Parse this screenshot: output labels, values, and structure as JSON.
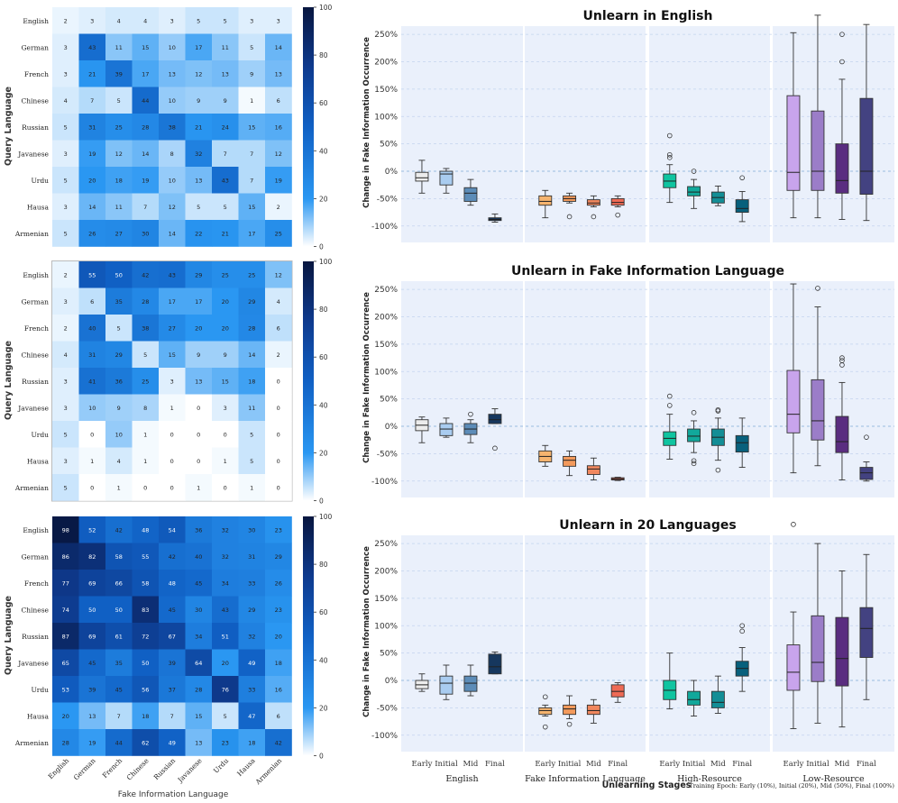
{
  "colorbar": {
    "ticks": [
      0,
      20,
      40,
      60,
      80,
      100
    ],
    "min": 0,
    "max": 100
  },
  "labels": {
    "query_language": "Query Language",
    "fake_info_language": "Fake Information Language",
    "y_axis": "Change in Fake Information Occurrence",
    "x_axis": "Unlearning Stages",
    "footnote": "Training Epoch: Early (10%), Initial (20%), Mid (50%), Final (100%)"
  },
  "chart_data": [
    {
      "type": "heatmap",
      "name": "heatmap-english",
      "rows": [
        "English",
        "German",
        "French",
        "Chinese",
        "Russian",
        "Javanese",
        "Urdu",
        "Hausa",
        "Armenian"
      ],
      "cols": [
        "English",
        "German",
        "French",
        "Chinese",
        "Russian",
        "Javanese",
        "Urdu",
        "Hausa",
        "Armenian"
      ],
      "values": [
        [
          2,
          3,
          4,
          4,
          3,
          5,
          5,
          3,
          3
        ],
        [
          3,
          43,
          11,
          15,
          10,
          17,
          11,
          5,
          14
        ],
        [
          3,
          21,
          39,
          17,
          13,
          12,
          13,
          9,
          13
        ],
        [
          4,
          7,
          5,
          44,
          10,
          9,
          9,
          1,
          6
        ],
        [
          5,
          31,
          25,
          28,
          38,
          21,
          24,
          15,
          16
        ],
        [
          3,
          19,
          12,
          14,
          8,
          32,
          7,
          7,
          12
        ],
        [
          5,
          20,
          18,
          19,
          10,
          13,
          43,
          7,
          19
        ],
        [
          3,
          14,
          11,
          7,
          12,
          5,
          5,
          15,
          2
        ],
        [
          5,
          26,
          27,
          30,
          14,
          22,
          21,
          17,
          25
        ]
      ],
      "ylabel": "Query Language"
    },
    {
      "type": "heatmap",
      "name": "heatmap-fake-language",
      "rows": [
        "English",
        "German",
        "French",
        "Chinese",
        "Russian",
        "Javanese",
        "Urdu",
        "Hausa",
        "Armenian"
      ],
      "cols": [
        "English",
        "German",
        "French",
        "Chinese",
        "Russian",
        "Javanese",
        "Urdu",
        "Hausa",
        "Armenian"
      ],
      "values": [
        [
          2,
          55,
          50,
          42,
          43,
          29,
          25,
          25,
          12
        ],
        [
          3,
          6,
          35,
          28,
          17,
          17,
          20,
          29,
          4
        ],
        [
          2,
          40,
          5,
          38,
          27,
          20,
          20,
          28,
          6
        ],
        [
          4,
          31,
          29,
          5,
          15,
          9,
          9,
          14,
          2
        ],
        [
          3,
          41,
          36,
          25,
          3,
          13,
          15,
          18,
          0
        ],
        [
          3,
          10,
          9,
          8,
          1,
          0,
          3,
          11,
          0
        ],
        [
          5,
          0,
          10,
          1,
          0,
          0,
          0,
          5,
          0
        ],
        [
          3,
          1,
          4,
          1,
          0,
          0,
          1,
          5,
          0
        ],
        [
          5,
          0,
          1,
          0,
          0,
          1,
          0,
          1,
          0
        ]
      ],
      "ylabel": "Query Language"
    },
    {
      "type": "heatmap",
      "name": "heatmap-20-languages",
      "rows": [
        "English",
        "German",
        "French",
        "Chinese",
        "Russian",
        "Javanese",
        "Urdu",
        "Hausa",
        "Armenian"
      ],
      "cols": [
        "English",
        "German",
        "French",
        "Chinese",
        "Russian",
        "Javanese",
        "Urdu",
        "Hausa",
        "Armenian"
      ],
      "values": [
        [
          98,
          52,
          42,
          48,
          54,
          36,
          32,
          30,
          23
        ],
        [
          86,
          82,
          58,
          55,
          42,
          40,
          32,
          31,
          29
        ],
        [
          77,
          69,
          66,
          58,
          48,
          45,
          34,
          33,
          26
        ],
        [
          74,
          50,
          50,
          83,
          45,
          30,
          43,
          29,
          23
        ],
        [
          87,
          69,
          61,
          72,
          67,
          34,
          51,
          32,
          20
        ],
        [
          65,
          45,
          35,
          50,
          39,
          64,
          20,
          49,
          18
        ],
        [
          53,
          39,
          45,
          56,
          37,
          28,
          76,
          33,
          16
        ],
        [
          20,
          13,
          7,
          18,
          7,
          15,
          5,
          47,
          6
        ],
        [
          28,
          19,
          44,
          62,
          49,
          13,
          23,
          18,
          42
        ]
      ],
      "ylabel": "Query Language",
      "xlabel": "Fake Information Language"
    },
    {
      "type": "box",
      "name": "box-english",
      "title": "Unlearn in English",
      "ylabel": "Change in Fake Information Occurrence",
      "ylim": [
        -130,
        265
      ],
      "yticks": [
        -100,
        -50,
        0,
        50,
        100,
        150,
        200,
        250
      ],
      "ytick_labels": [
        "-100%",
        "-50%",
        "0%",
        "50%",
        "100%",
        "150%",
        "200%",
        "250%"
      ],
      "groups": [
        "English",
        "Fake Information Language",
        "High-Resource",
        "Low-Resource"
      ],
      "stages": [
        "Early",
        "Initial",
        "Mid",
        "Final"
      ],
      "boxes": [
        [
          {
            "q1": -18,
            "med": -12,
            "q3": -2,
            "lo": -40,
            "hi": 20,
            "fl": []
          },
          {
            "q1": -25,
            "med": -5,
            "q3": 0,
            "lo": -40,
            "hi": 5,
            "fl": []
          },
          {
            "q1": -55,
            "med": -40,
            "q3": -30,
            "lo": -62,
            "hi": -15,
            "fl": []
          },
          {
            "q1": -90,
            "med": -88,
            "q3": -85,
            "lo": -93,
            "hi": -78,
            "fl": []
          }
        ],
        [
          {
            "q1": -62,
            "med": -55,
            "q3": -45,
            "lo": -85,
            "hi": -35,
            "fl": []
          },
          {
            "q1": -55,
            "med": -50,
            "q3": -45,
            "lo": -58,
            "hi": -40,
            "fl": [
              -83
            ]
          },
          {
            "q1": -62,
            "med": -58,
            "q3": -52,
            "lo": -65,
            "hi": -45,
            "fl": [
              -83
            ]
          },
          {
            "q1": -62,
            "med": -57,
            "q3": -50,
            "lo": -65,
            "hi": -45,
            "fl": [
              -80
            ]
          }
        ],
        [
          {
            "q1": -30,
            "med": -18,
            "q3": -5,
            "lo": -57,
            "hi": 12,
            "fl": [
              65,
              30,
              25
            ]
          },
          {
            "q1": -45,
            "med": -38,
            "q3": -28,
            "lo": -68,
            "hi": -15,
            "fl": [
              0
            ]
          },
          {
            "q1": -58,
            "med": -48,
            "q3": -38,
            "lo": -63,
            "hi": -27,
            "fl": []
          },
          {
            "q1": -75,
            "med": -68,
            "q3": -52,
            "lo": -92,
            "hi": -37,
            "fl": [
              -12
            ]
          }
        ],
        [
          {
            "q1": -35,
            "med": -2,
            "q3": 138,
            "lo": -85,
            "hi": 253,
            "fl": []
          },
          {
            "q1": -35,
            "med": 0,
            "q3": 110,
            "lo": -85,
            "hi": 285,
            "fl": []
          },
          {
            "q1": -40,
            "med": -17,
            "q3": 50,
            "lo": -88,
            "hi": 168,
            "fl": [
              250,
              200
            ]
          },
          {
            "q1": -42,
            "med": 0,
            "q3": 133,
            "lo": -90,
            "hi": 268,
            "fl": []
          }
        ]
      ]
    },
    {
      "type": "box",
      "name": "box-fake-language",
      "title": "Unlearn in Fake Information Language",
      "ylabel": "Change in Fake Information Occurrence",
      "ylim": [
        -130,
        265
      ],
      "yticks": [
        -100,
        -50,
        0,
        50,
        100,
        150,
        200,
        250
      ],
      "ytick_labels": [
        "-100%",
        "-50%",
        "0%",
        "50%",
        "100%",
        "150%",
        "200%",
        "250%"
      ],
      "groups": [
        "English",
        "Fake Information Language",
        "High-Resource",
        "Low-Resource"
      ],
      "stages": [
        "Early",
        "Initial",
        "Mid",
        "Final"
      ],
      "boxes": [
        [
          {
            "q1": -8,
            "med": 2,
            "q3": 12,
            "lo": -30,
            "hi": 17,
            "fl": []
          },
          {
            "q1": -17,
            "med": -5,
            "q3": 5,
            "lo": -20,
            "hi": 15,
            "fl": []
          },
          {
            "q1": -15,
            "med": -5,
            "q3": 5,
            "lo": -30,
            "hi": 12,
            "fl": [
              22
            ]
          },
          {
            "q1": 5,
            "med": 12,
            "q3": 22,
            "lo": 5,
            "hi": 32,
            "fl": [
              -40
            ]
          }
        ],
        [
          {
            "q1": -65,
            "med": -55,
            "q3": -45,
            "lo": -73,
            "hi": -35,
            "fl": []
          },
          {
            "q1": -73,
            "med": -62,
            "q3": -55,
            "lo": -90,
            "hi": -45,
            "fl": []
          },
          {
            "q1": -88,
            "med": -78,
            "q3": -72,
            "lo": -98,
            "hi": -58,
            "fl": []
          },
          {
            "q1": -98,
            "med": -96,
            "q3": -94,
            "lo": -99,
            "hi": -93,
            "fl": []
          }
        ],
        [
          {
            "q1": -35,
            "med": -22,
            "q3": -10,
            "lo": -60,
            "hi": 22,
            "fl": [
              55,
              38
            ]
          },
          {
            "q1": -28,
            "med": -18,
            "q3": -5,
            "lo": -48,
            "hi": 10,
            "fl": [
              25,
              -63,
              -68
            ]
          },
          {
            "q1": -35,
            "med": -20,
            "q3": -5,
            "lo": -62,
            "hi": 15,
            "fl": [
              30,
              28,
              -80
            ]
          },
          {
            "q1": -47,
            "med": -30,
            "q3": -17,
            "lo": -75,
            "hi": 15,
            "fl": []
          }
        ],
        [
          {
            "q1": -12,
            "med": 22,
            "q3": 102,
            "lo": -85,
            "hi": 260,
            "fl": []
          },
          {
            "q1": -25,
            "med": 10,
            "q3": 85,
            "lo": -72,
            "hi": 218,
            "fl": [
              252
            ]
          },
          {
            "q1": -48,
            "med": -28,
            "q3": 18,
            "lo": -98,
            "hi": 80,
            "fl": [
              125,
              120,
              112
            ]
          },
          {
            "q1": -97,
            "med": -85,
            "q3": -75,
            "lo": -100,
            "hi": -65,
            "fl": [
              -20
            ]
          }
        ]
      ]
    },
    {
      "type": "box",
      "name": "box-20-languages",
      "title": "Unlearn in 20 Languages",
      "ylabel": "Change in Fake Information Occurrence",
      "xlabel": "Unlearning Stages",
      "ylim": [
        -130,
        265
      ],
      "yticks": [
        -100,
        -50,
        0,
        50,
        100,
        150,
        200,
        250
      ],
      "ytick_labels": [
        "-100%",
        "-50%",
        "0%",
        "50%",
        "100%",
        "150%",
        "200%",
        "250%"
      ],
      "groups": [
        "English",
        "Fake Information Language",
        "High-Resource",
        "Low-Resource"
      ],
      "stages": [
        "Early",
        "Initial",
        "Mid",
        "Final"
      ],
      "boxes": [
        [
          {
            "q1": -15,
            "med": -8,
            "q3": 0,
            "lo": -20,
            "hi": 12,
            "fl": []
          },
          {
            "q1": -25,
            "med": -5,
            "q3": 8,
            "lo": -35,
            "hi": 28,
            "fl": []
          },
          {
            "q1": -20,
            "med": -5,
            "q3": 8,
            "lo": -28,
            "hi": 28,
            "fl": []
          },
          {
            "q1": 12,
            "med": 25,
            "q3": 48,
            "lo": 12,
            "hi": 52,
            "fl": []
          }
        ],
        [
          {
            "q1": -62,
            "med": -55,
            "q3": -50,
            "lo": -65,
            "hi": -45,
            "fl": [
              -30,
              -85
            ]
          },
          {
            "q1": -62,
            "med": -52,
            "q3": -45,
            "lo": -70,
            "hi": -28,
            "fl": [
              -80
            ]
          },
          {
            "q1": -62,
            "med": -55,
            "q3": -45,
            "lo": -78,
            "hi": -35,
            "fl": []
          },
          {
            "q1": -30,
            "med": -20,
            "q3": -8,
            "lo": -40,
            "hi": -4,
            "fl": []
          }
        ],
        [
          {
            "q1": -35,
            "med": -18,
            "q3": 0,
            "lo": -52,
            "hi": 50,
            "fl": []
          },
          {
            "q1": -45,
            "med": -35,
            "q3": -20,
            "lo": -65,
            "hi": 0,
            "fl": []
          },
          {
            "q1": -50,
            "med": -40,
            "q3": -20,
            "lo": -60,
            "hi": 8,
            "fl": []
          },
          {
            "q1": 8,
            "med": 22,
            "q3": 35,
            "lo": -20,
            "hi": 60,
            "fl": [
              100,
              90
            ]
          }
        ],
        [
          {
            "q1": -18,
            "med": 15,
            "q3": 65,
            "lo": -88,
            "hi": 125,
            "fl": [
              285
            ]
          },
          {
            "q1": -2,
            "med": 33,
            "q3": 118,
            "lo": -78,
            "hi": 250,
            "fl": []
          },
          {
            "q1": -10,
            "med": 40,
            "q3": 115,
            "lo": -85,
            "hi": 200,
            "fl": []
          },
          {
            "q1": 42,
            "med": 95,
            "q3": 133,
            "lo": -35,
            "hi": 230,
            "fl": []
          }
        ]
      ]
    }
  ],
  "box_colors": [
    [
      "#ececec",
      "#a9ccf0",
      "#5c8cb8",
      "#16375e"
    ],
    [
      "#f5b46f",
      "#f39a5c",
      "#f0875e",
      "#ee6a55"
    ],
    [
      "#0fc4a0",
      "#11a89b",
      "#138e96",
      "#08607c"
    ],
    [
      "#c8a4ec",
      "#9b7dc8",
      "#5a2d80",
      "#434281"
    ]
  ]
}
